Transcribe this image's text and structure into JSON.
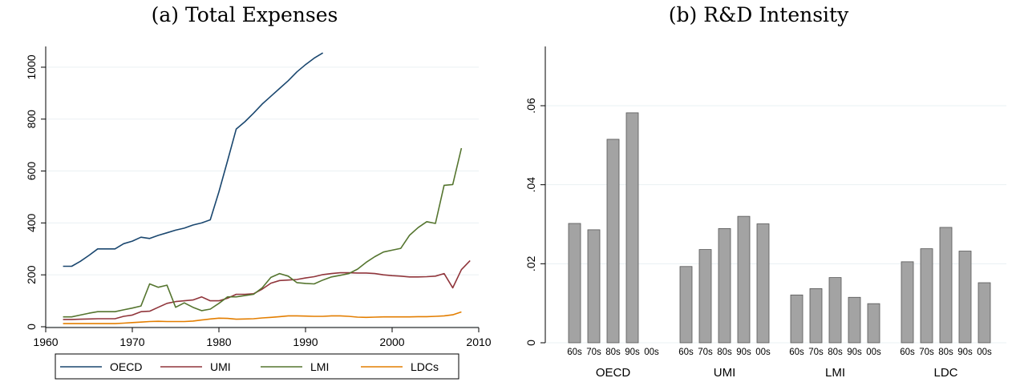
{
  "chart_data": [
    {
      "type": "line",
      "title": "(a) Total Expenses",
      "xlabel": "",
      "ylabel": "",
      "xlim": [
        1960,
        2010
      ],
      "ylim": [
        0,
        1080
      ],
      "xticks": [
        1960,
        1970,
        1980,
        1990,
        2000,
        2010
      ],
      "yticks": [
        0,
        200,
        400,
        600,
        800,
        1000
      ],
      "grid": "horizontal",
      "legend": "bottom",
      "series": [
        {
          "name": "OECD",
          "color": "#1a476f",
          "x": [
            1962,
            1963,
            1964,
            1965,
            1966,
            1967,
            1968,
            1969,
            1970,
            1971,
            1972,
            1973,
            1974,
            1975,
            1976,
            1977,
            1978,
            1979,
            1980,
            1981,
            1982,
            1983,
            1984,
            1985,
            1986,
            1987,
            1988,
            1989,
            1990,
            1991,
            1992
          ],
          "y": [
            233,
            233,
            252,
            275,
            300,
            300,
            300,
            320,
            330,
            345,
            340,
            352,
            362,
            372,
            380,
            392,
            400,
            412,
            520,
            640,
            762,
            790,
            823,
            858,
            888,
            918,
            948,
            982,
            1010,
            1035,
            1055
          ]
        },
        {
          "name": "UMI",
          "color": "#90353b",
          "x": [
            1962,
            1963,
            1964,
            1965,
            1966,
            1967,
            1968,
            1969,
            1970,
            1971,
            1972,
            1973,
            1974,
            1975,
            1976,
            1977,
            1978,
            1979,
            1980,
            1981,
            1982,
            1983,
            1984,
            1985,
            1986,
            1987,
            1988,
            1989,
            1990,
            1991,
            1992,
            1993,
            1994,
            1995,
            1996,
            1997,
            1998,
            1999,
            2000,
            2001,
            2002,
            2003,
            2004,
            2005,
            2006,
            2007,
            2008,
            2009
          ],
          "y": [
            28,
            28,
            29,
            30,
            31,
            31,
            31,
            40,
            45,
            58,
            60,
            75,
            90,
            97,
            100,
            103,
            115,
            100,
            100,
            110,
            125,
            125,
            127,
            145,
            168,
            178,
            180,
            182,
            188,
            193,
            201,
            205,
            208,
            208,
            207,
            207,
            205,
            200,
            197,
            195,
            192,
            192,
            193,
            195,
            205,
            150,
            220,
            255
          ]
        },
        {
          "name": "LMI",
          "color": "#55752f",
          "x": [
            1962,
            1963,
            1964,
            1965,
            1966,
            1967,
            1968,
            1969,
            1970,
            1971,
            1972,
            1973,
            1974,
            1975,
            1976,
            1977,
            1978,
            1979,
            1980,
            1981,
            1982,
            1983,
            1984,
            1985,
            1986,
            1987,
            1988,
            1989,
            1990,
            1991,
            1992,
            1993,
            1994,
            1995,
            1996,
            1997,
            1998,
            1999,
            2000,
            2001,
            2002,
            2003,
            2004,
            2005,
            2006,
            2007,
            2008
          ],
          "y": [
            38,
            38,
            45,
            52,
            58,
            58,
            58,
            65,
            72,
            80,
            165,
            152,
            160,
            75,
            92,
            75,
            62,
            68,
            90,
            115,
            115,
            120,
            125,
            150,
            190,
            205,
            195,
            170,
            167,
            165,
            180,
            192,
            198,
            205,
            222,
            248,
            270,
            288,
            295,
            302,
            352,
            382,
            405,
            398,
            545,
            548,
            688
          ]
        },
        {
          "name": "LDCs",
          "color": "#e37e00",
          "x": [
            1962,
            1963,
            1964,
            1965,
            1966,
            1967,
            1968,
            1969,
            1970,
            1971,
            1972,
            1973,
            1974,
            1975,
            1976,
            1977,
            1978,
            1979,
            1980,
            1981,
            1982,
            1983,
            1984,
            1985,
            1986,
            1987,
            1988,
            1989,
            1990,
            1991,
            1992,
            1993,
            1994,
            1995,
            1996,
            1997,
            1998,
            1999,
            2000,
            2001,
            2002,
            2003,
            2004,
            2005,
            2006,
            2007,
            2008
          ],
          "y": [
            12,
            12,
            12,
            12,
            12,
            12,
            12,
            14,
            16,
            18,
            20,
            21,
            20,
            20,
            20,
            22,
            26,
            30,
            33,
            32,
            29,
            30,
            31,
            34,
            36,
            39,
            42,
            42,
            41,
            40,
            40,
            42,
            42,
            40,
            37,
            36,
            37,
            38,
            38,
            38,
            38,
            39,
            39,
            40,
            42,
            46,
            57
          ]
        }
      ]
    },
    {
      "type": "bar",
      "title": "(b) R&D Intensity",
      "xlabel": "",
      "ylabel": "",
      "ylim": [
        0,
        0.075
      ],
      "yticks": [
        0,
        0.02,
        0.04,
        0.06
      ],
      "ytick_labels": [
        "0",
        ".02",
        ".04",
        ".06"
      ],
      "grid": "horizontal",
      "bar_color": "#a3a3a3",
      "groups": [
        {
          "name": "OECD",
          "decades": [
            "60s",
            "70s",
            "80s",
            "90s",
            "00s"
          ],
          "values": [
            0.0302,
            0.0286,
            0.0515,
            0.0582,
            null
          ]
        },
        {
          "name": "UMI",
          "decades": [
            "60s",
            "70s",
            "80s",
            "90s",
            "00s"
          ],
          "values": [
            0.0193,
            0.0236,
            0.0289,
            0.032,
            0.0301
          ]
        },
        {
          "name": "LMI",
          "decades": [
            "60s",
            "70s",
            "80s",
            "90s",
            "00s"
          ],
          "values": [
            0.0121,
            0.0137,
            0.0165,
            0.0115,
            0.0099
          ]
        },
        {
          "name": "LDC",
          "decades": [
            "60s",
            "70s",
            "80s",
            "90s",
            "00s"
          ],
          "values": [
            0.0205,
            0.0238,
            0.0292,
            0.0232,
            0.0152
          ]
        }
      ]
    }
  ]
}
